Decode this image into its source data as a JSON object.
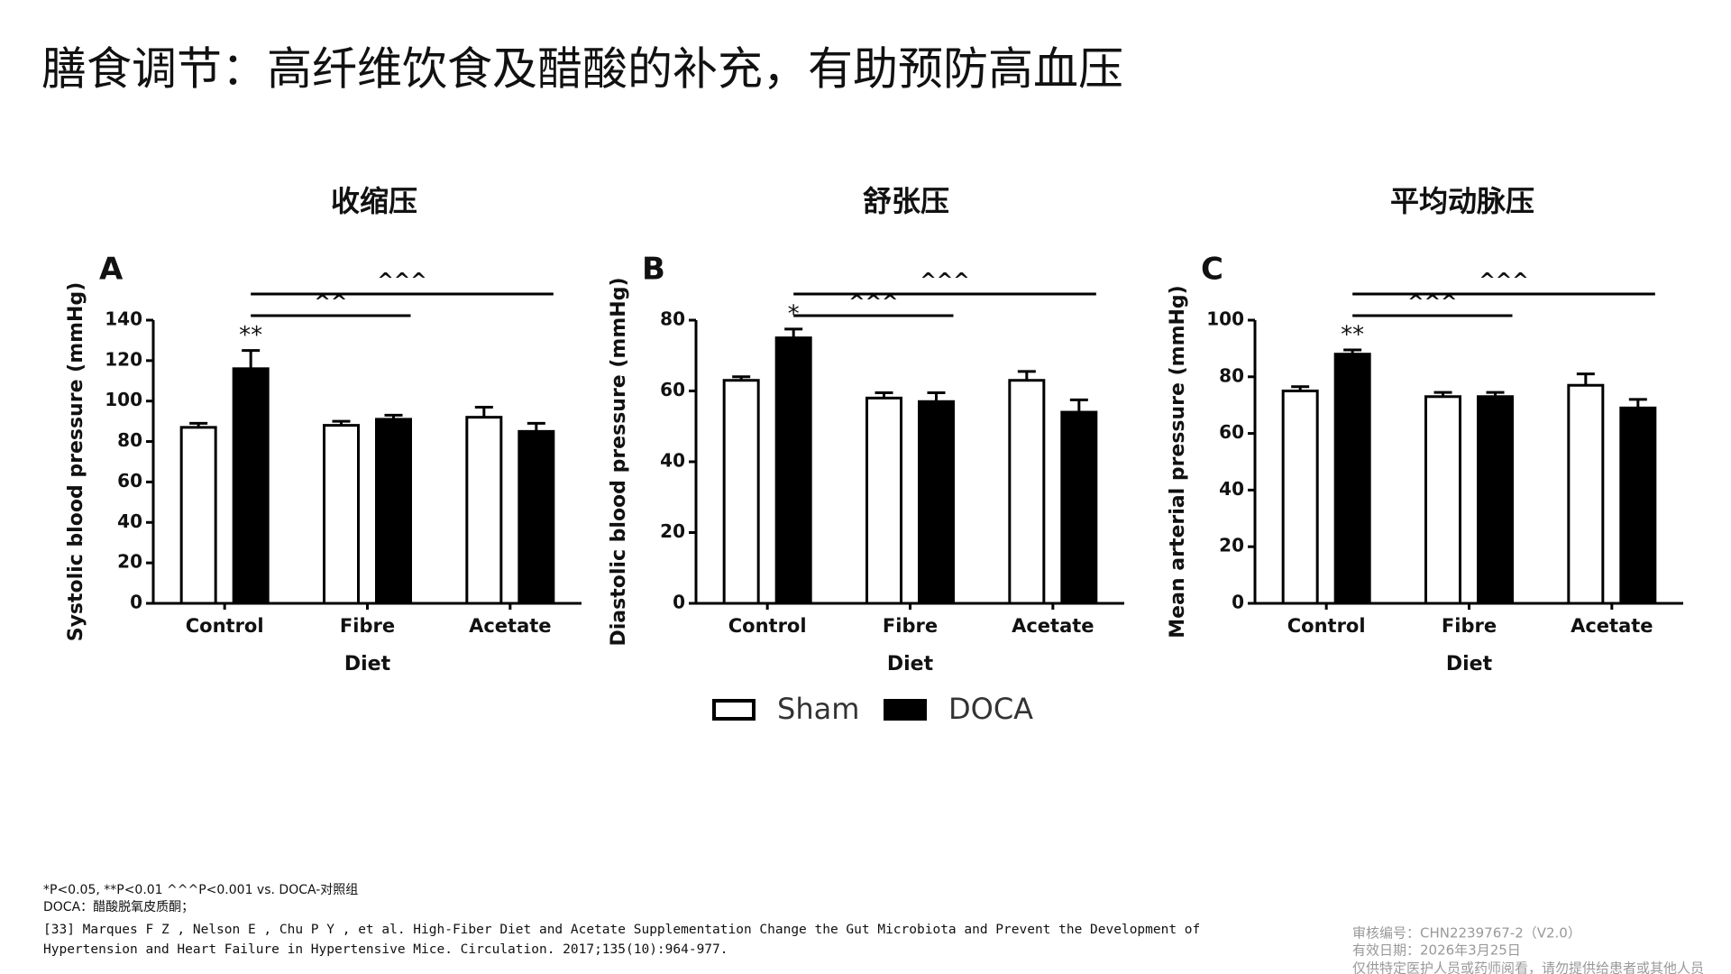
{
  "slide_title": "膳食调节：高纤维饮食及醋酸的补充，有助预防高血压",
  "chart_data": [
    {
      "type": "bar",
      "title": "收缩压",
      "panel": "A",
      "ylabel": "Systolic blood pressure (mmHg)",
      "xlabel": "Diet",
      "categories": [
        "Control",
        "Fibre",
        "Acetate"
      ],
      "series": [
        {
          "name": "Sham",
          "color": "#ffffff",
          "values": [
            87,
            88,
            92
          ],
          "errors": [
            2,
            2,
            5
          ]
        },
        {
          "name": "DOCA",
          "color": "#000000",
          "values": [
            116,
            91,
            85
          ],
          "errors": [
            9,
            2,
            4
          ]
        }
      ],
      "ylim": [
        0,
        140
      ],
      "yticks": [
        0,
        20,
        40,
        60,
        80,
        100,
        120,
        140
      ],
      "annotations": [
        {
          "text": "**",
          "category": "Control",
          "series": "DOCA"
        }
      ],
      "brackets": [
        {
          "label": "^^",
          "from": "Control",
          "to": "Fibre"
        },
        {
          "label": "^^^",
          "from": "Control",
          "to": "Acetate"
        }
      ]
    },
    {
      "type": "bar",
      "title": "舒张压",
      "panel": "B",
      "ylabel": "Diastolic blood pressure (mmHg)",
      "xlabel": "Diet",
      "categories": [
        "Control",
        "Fibre",
        "Acetate"
      ],
      "series": [
        {
          "name": "Sham",
          "color": "#ffffff",
          "values": [
            63,
            58,
            63
          ],
          "errors": [
            1,
            1.5,
            2.5
          ]
        },
        {
          "name": "DOCA",
          "color": "#000000",
          "values": [
            75,
            57,
            54
          ],
          "errors": [
            2.5,
            2.5,
            3.5
          ]
        }
      ],
      "ylim": [
        0,
        80
      ],
      "yticks": [
        0,
        20,
        40,
        60,
        80
      ],
      "annotations": [
        {
          "text": "*",
          "category": "Control",
          "series": "DOCA"
        }
      ],
      "brackets": [
        {
          "label": "^^^",
          "from": "Control",
          "to": "Fibre"
        },
        {
          "label": "^^^",
          "from": "Control",
          "to": "Acetate"
        }
      ]
    },
    {
      "type": "bar",
      "title": "平均动脉压",
      "panel": "C",
      "ylabel": "Mean arterial pressure (mmHg)",
      "xlabel": "Diet",
      "categories": [
        "Control",
        "Fibre",
        "Acetate"
      ],
      "series": [
        {
          "name": "Sham",
          "color": "#ffffff",
          "values": [
            75,
            73,
            77
          ],
          "errors": [
            1.5,
            1.5,
            4
          ]
        },
        {
          "name": "DOCA",
          "color": "#000000",
          "values": [
            88,
            73,
            69
          ],
          "errors": [
            1.5,
            1.5,
            3
          ]
        }
      ],
      "ylim": [
        0,
        100
      ],
      "yticks": [
        0,
        20,
        40,
        60,
        80,
        100
      ],
      "annotations": [
        {
          "text": "**",
          "category": "Control",
          "series": "DOCA"
        }
      ],
      "brackets": [
        {
          "label": "^^^",
          "from": "Control",
          "to": "Fibre"
        },
        {
          "label": "^^^",
          "from": "Control",
          "to": "Acetate"
        }
      ]
    }
  ],
  "footnotes": [
    "*P<0.05, **P<0.01 ^^^P<0.001 vs. DOCA-对照组",
    "DOCA：醋酸脱氧皮质酮；"
  ],
  "reference": [
    "[33] Marques F Z , Nelson E , Chu P Y , et al. High-Fiber Diet and Acetate Supplementation Change the Gut Microbiota and Prevent the Development of",
    "Hypertension and Heart Failure in Hypertensive Mice. Circulation. 2017;135(10):964-977."
  ],
  "approval": [
    "审核编号：CHN2239767-2（V2.0）",
    "有效日期：2026年3月25日",
    "仅供特定医护人员或药师阅看，请勿提供给患者或其他人员"
  ]
}
